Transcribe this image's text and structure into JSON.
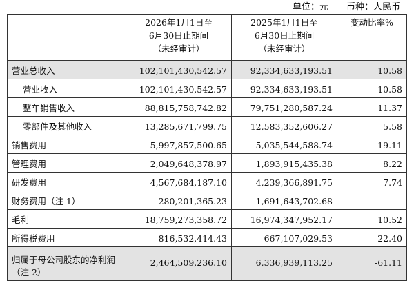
{
  "unit": {
    "unit_label": "单位：元",
    "currency_label": "币种：人民币"
  },
  "header": {
    "current_period": [
      "2026年1月1日至",
      "6月30日止期间",
      "（未经审计）"
    ],
    "prior_period": [
      "2025年1月1日至",
      "6月30日止期间",
      "（未经审计）"
    ],
    "change_ratio": "变动比率%"
  },
  "rows": [
    {
      "label": "营业总收入",
      "current": "102,101,430,542.57",
      "prior": "92,334,633,193.51",
      "change": "10.58"
    },
    {
      "label": "营业收入",
      "current": "102,101,430,542.57",
      "prior": "92,334,633,193.51",
      "change": "10.58"
    },
    {
      "label": "整车销售收入",
      "current": "88,815,758,742.82",
      "prior": "79,751,280,587.24",
      "change": "11.37"
    },
    {
      "label": "零部件及其他收入",
      "current": "13,285,671,799.75",
      "prior": "12,583,352,606.27",
      "change": "5.58"
    },
    {
      "label": "销售费用",
      "current": "5,997,857,500.65",
      "prior": "5,035,544,588.74",
      "change": "19.11"
    },
    {
      "label": "管理费用",
      "current": "2,049,648,378.97",
      "prior": "1,893,915,435.38",
      "change": "8.22"
    },
    {
      "label": "研发费用",
      "current": "4,567,684,187.10",
      "prior": "4,239,366,891.75",
      "change": "7.74"
    },
    {
      "label": "财务费用（注 1）",
      "current": "280,201,365.23",
      "prior": "–1,691,643,702.68",
      "change": ""
    },
    {
      "label": "毛利",
      "current": "18,759,273,358.72",
      "prior": "16,974,347,952.17",
      "change": "10.52"
    },
    {
      "label": "所得税费用",
      "current": "816,532,414.43",
      "prior": "667,107,029.53",
      "change": "22.40"
    },
    {
      "label": "归属于母公司股东的净利润",
      "label_line2": "（注 2）",
      "current": "2,464,509,236.10",
      "prior": "6,336,939,113.25",
      "change": "-61.11"
    }
  ]
}
